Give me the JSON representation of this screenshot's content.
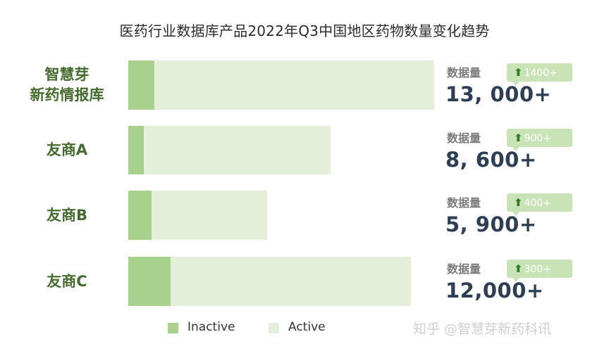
{
  "chart_data": {
    "type": "bar",
    "orientation": "horizontal",
    "stacked": true,
    "title": "医药行业数据库产品2022年Q3中国地区药物数量变化趋势",
    "categories": [
      {
        "line1": "智慧芽",
        "line2": "新药情报库"
      },
      {
        "line1": "友商A",
        "line2": ""
      },
      {
        "line1": "友商B",
        "line2": ""
      },
      {
        "line1": "友商C",
        "line2": ""
      }
    ],
    "series": [
      {
        "name": "Inactive",
        "color": "#a9d18e",
        "values": [
          1100,
          650,
          1000,
          1800
        ]
      },
      {
        "name": "Active",
        "color": "#e3efd9",
        "values": [
          11900,
          7950,
          4900,
          10200
        ]
      }
    ],
    "totals_label": "数据量",
    "totals_display": [
      "13, 000+",
      "8, 600+",
      "5, 900+",
      "12,000+"
    ],
    "totals": [
      13000,
      8600,
      5900,
      12000
    ],
    "increase_display": [
      "1400+",
      "900+",
      "400+",
      "300+"
    ],
    "increase_icon": "up-arrow-icon",
    "xlim": [
      0,
      13000
    ],
    "legend": {
      "placement": "bottom-center",
      "items": [
        "Inactive",
        "Active"
      ]
    }
  },
  "watermark": "知乎 @智慧芽新药科讯"
}
